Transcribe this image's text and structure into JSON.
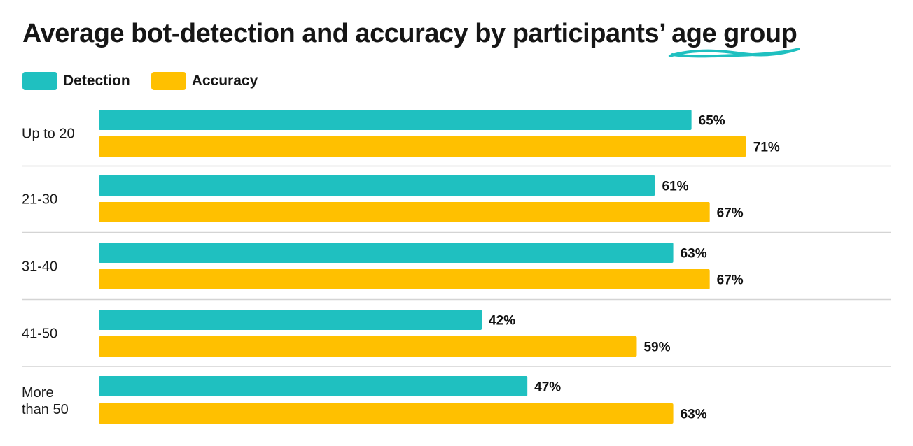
{
  "chart_data": {
    "type": "bar",
    "orientation": "horizontal",
    "title_main": "Average bot-detection and accuracy by participants’",
    "title_highlight": "age group",
    "categories": [
      "Up to 20",
      "21-30",
      "31-40",
      "41-50",
      "More than 50"
    ],
    "series": [
      {
        "name": "Detection",
        "color": "#1fc0c0",
        "values": [
          65,
          61,
          63,
          42,
          47
        ],
        "labels": [
          "65%",
          "61%",
          "63%",
          "42%",
          "47%"
        ]
      },
      {
        "name": "Accuracy",
        "color": "#ffc000",
        "values": [
          71,
          67,
          67,
          59,
          63
        ],
        "labels": [
          "71%",
          "67%",
          "67%",
          "59%",
          "63%"
        ]
      }
    ],
    "xlim": [
      0,
      100
    ],
    "legend_position": "top-left",
    "grid": false,
    "separators": true,
    "highlight_color": "#1fc0c0"
  }
}
